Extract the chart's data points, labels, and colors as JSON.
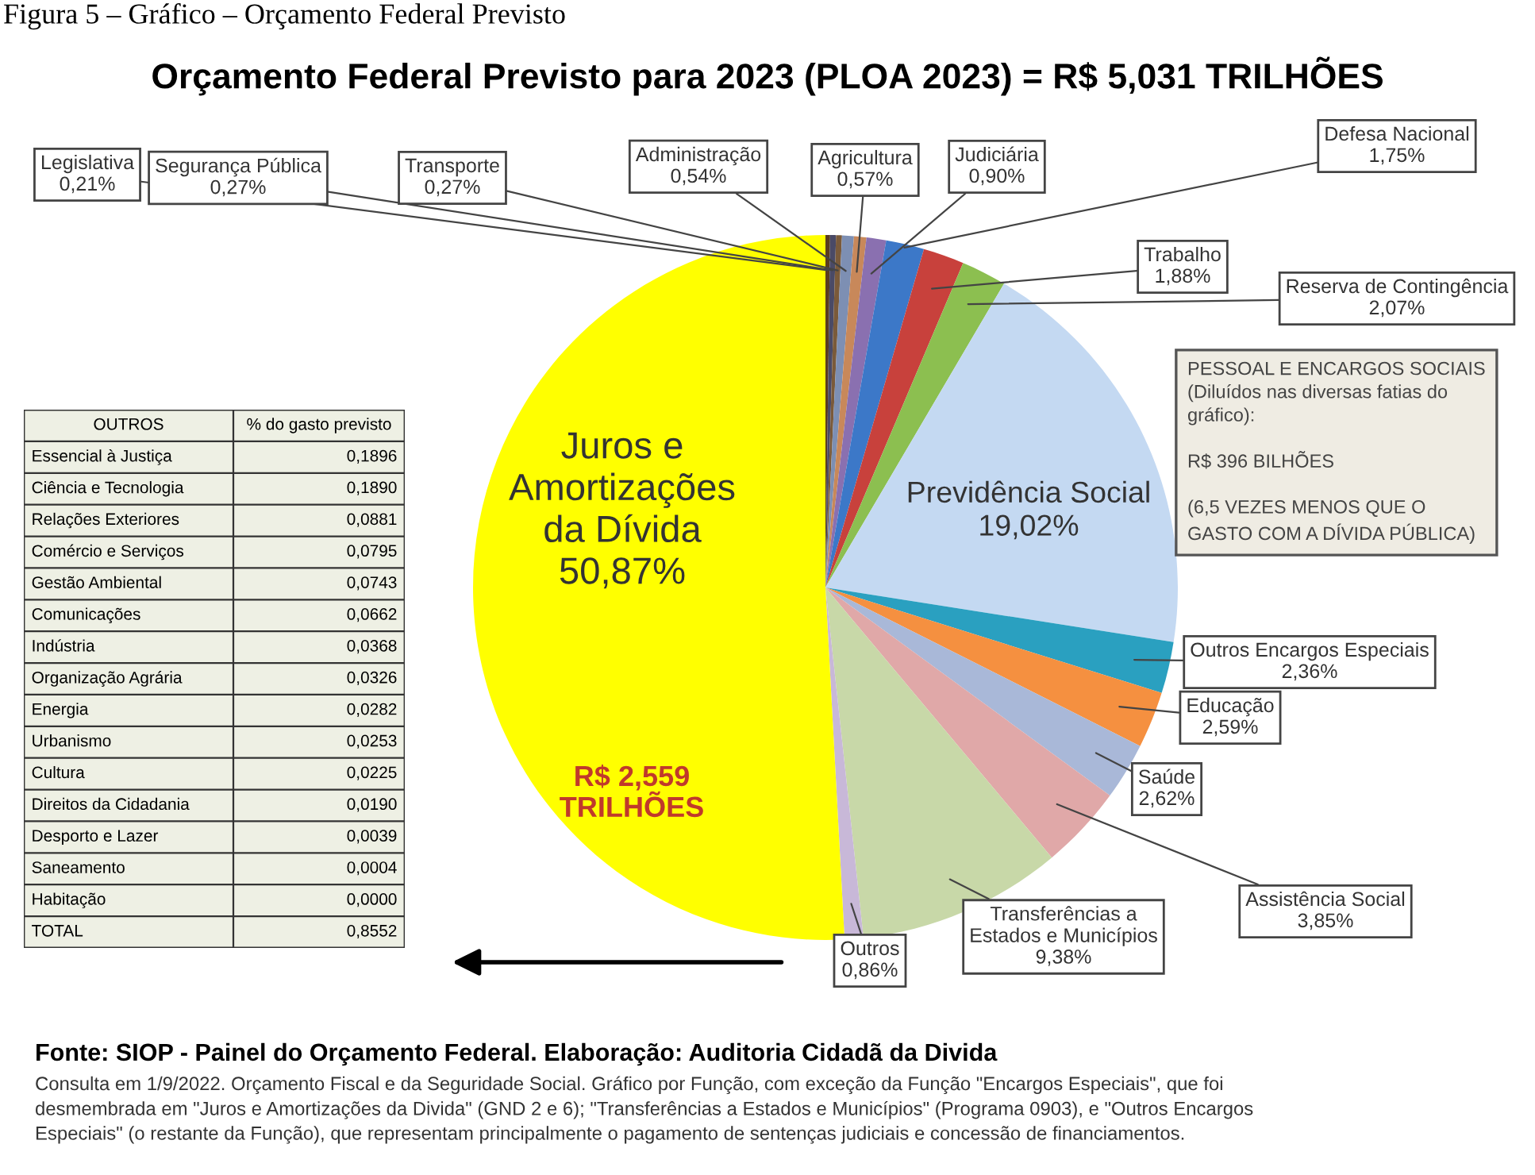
{
  "chart_data": [
    {
      "type": "pie",
      "title": "Orçamento Federal Previsto para 2023 (PLOA 2023) = R$ 5,031 TRILHÕES",
      "categories": [
        "Legislativa",
        "Segurança Pública",
        "Transporte",
        "Administração",
        "Agricultura",
        "Judiciária",
        "Defesa Nacional",
        "Trabalho",
        "Reserva de Contingência",
        "Previdência Social",
        "Outros Encargos Especiais",
        "Educação",
        "Saúde",
        "Assistência Social",
        "Transferências a\nEstados e Municípios",
        "Outros",
        "Juros e\nAmortizações\nda Dívida"
      ],
      "values": [
        0.21,
        0.27,
        0.27,
        0.54,
        0.57,
        0.9,
        1.75,
        1.88,
        2.07,
        19.02,
        2.36,
        2.59,
        2.62,
        3.85,
        9.38,
        0.86,
        50.87
      ],
      "value_labels": [
        "0,21%",
        "0,27%",
        "0,27%",
        "0,54%",
        "0,57%",
        "0,90%",
        "1,75%",
        "1,88%",
        "2,07%",
        "19,02%",
        "2,36%",
        "2,59%",
        "2,62%",
        "3,85%",
        "9,38%",
        "0,86%",
        "50,87%"
      ],
      "colors": [
        "#5a3d1e",
        "#4a4a66",
        "#7a5a3a",
        "#7d8fb3",
        "#c8885a",
        "#8a70b0",
        "#3c78c8",
        "#c8413c",
        "#8cbf50",
        "#c4d9f2",
        "#2aa0c0",
        "#f59040",
        "#a9b8d8",
        "#e0a8a8",
        "#c8d8a8",
        "#c8b8d8",
        "#ffff00"
      ],
      "annotations": [
        "R$ 2,559\nTRILHÕES",
        "PESSOAL E ENCARGOS SOCIAIS\n(Diluídos nas diversas fatias do\ngráfico):\n\nR$ 396 BILHÕES\n\n(6,5 VEZES MENOS QUE O\nGASTO COM A DÍVIDA PÚBLICA)",
        "Fonte: SIOP - Painel do Orçamento Federal. Elaboração: Auditoria Cidadã da Divida",
        "Consulta em 1/9/2022. Orçamento Fiscal e da Seguridade Social. Gráfico por Função, com exceção da Função \"Encargos Especiais\", que foi\ndesmembrada em \"Juros e Amortizações da Divida\" (GND 2 e 6); \"Transferências a Estados e Municípios\" (Programa 0903), e \"Outros Encargos\nEspeciais\" (o restante da Função), que representam principalmente o pagamento de sentenças judiciais e concessão de financiamentos.",
        "Figura 5 – Gráfico – Orçamento Federal Previsto"
      ]
    },
    {
      "type": "other",
      "annotations": [
        "OUTROS",
        "% do gasto previsto"
      ],
      "categories": [
        "Essencial à Justiça",
        "Ciência e Tecnologia",
        "Relações Exteriores",
        "Comércio e Serviços",
        "Gestão Ambiental",
        "Comunicações",
        "Indústria",
        "Organização Agrária",
        "Energia",
        "Urbanismo",
        "Cultura",
        "Direitos da Cidadania",
        "Desporto e Lazer",
        "Saneamento",
        "Habitação",
        "TOTAL"
      ],
      "values": [
        0.1896,
        0.189,
        0.0881,
        0.0795,
        0.0743,
        0.0662,
        0.0368,
        0.0326,
        0.0282,
        0.0253,
        0.0225,
        0.019,
        0.0039,
        0.0004,
        0.0,
        0.8552
      ],
      "value_labels": [
        "0,1896",
        "0,1890",
        "0,0881",
        "0,0795",
        "0,0743",
        "0,0662",
        "0,0368",
        "0,0326",
        "0,0282",
        "0,0253",
        "0,0225",
        "0,0190",
        "0,0039",
        "0,0004",
        "0,0000",
        "0,8552"
      ]
    }
  ]
}
